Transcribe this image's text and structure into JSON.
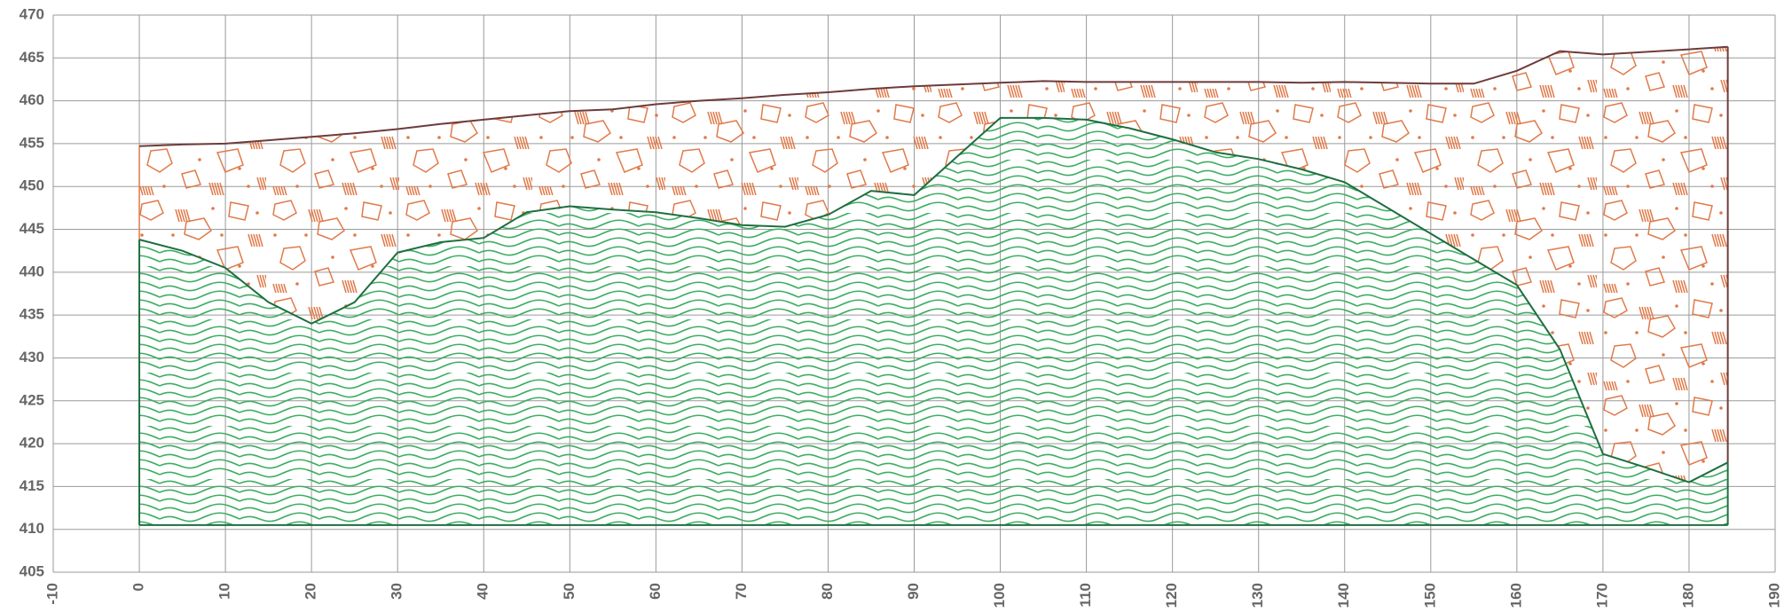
{
  "chart_data": {
    "type": "profile",
    "x": [
      0,
      5,
      10,
      15,
      20,
      25,
      30,
      35,
      40,
      45,
      50,
      55,
      60,
      65,
      70,
      75,
      80,
      85,
      90,
      95,
      100,
      105,
      110,
      115,
      120,
      125,
      130,
      135,
      140,
      145,
      150,
      155,
      160,
      165,
      170,
      175,
      180,
      184.5
    ],
    "series": [
      {
        "color": "#e07a4a",
        "line_color": "#6e3b3b",
        "values": [
          454.7,
          454.9,
          455,
          455.4,
          455.8,
          456.2,
          456.7,
          457.3,
          457.8,
          458.3,
          458.8,
          459,
          459.6,
          460,
          460.3,
          460.7,
          461,
          461.4,
          461.7,
          461.9,
          462.1,
          462.3,
          462.2,
          462.2,
          462.2,
          462.2,
          462.2,
          462.1,
          462.2,
          462.1,
          462,
          462,
          463.5,
          465.8,
          465.4,
          465.7,
          466,
          466.3
        ]
      },
      {
        "color": "#3dae63",
        "line_color": "#1f6e40",
        "bottom": 410.5,
        "values": [
          443.8,
          442.5,
          440.5,
          436.5,
          434,
          436.5,
          442.3,
          443.5,
          444,
          447,
          447.7,
          447.3,
          447,
          446.3,
          445.5,
          445.3,
          446.7,
          449.5,
          449,
          453.5,
          458,
          458,
          457.8,
          456.8,
          455.5,
          454,
          453.2,
          452,
          450.5,
          447.5,
          444.5,
          441.5,
          438.5,
          431,
          418.8,
          417.2,
          415.5,
          417.8
        ]
      }
    ],
    "xlim": [
      -10,
      190
    ],
    "xticks": [
      -10,
      0,
      10,
      20,
      30,
      40,
      50,
      60,
      70,
      80,
      90,
      100,
      110,
      120,
      130,
      140,
      150,
      160,
      170,
      180,
      190
    ],
    "ylim": [
      405,
      470
    ],
    "yticks": [
      405,
      410,
      415,
      420,
      425,
      430,
      435,
      440,
      445,
      450,
      455,
      460,
      465,
      470
    ],
    "grid": true
  }
}
